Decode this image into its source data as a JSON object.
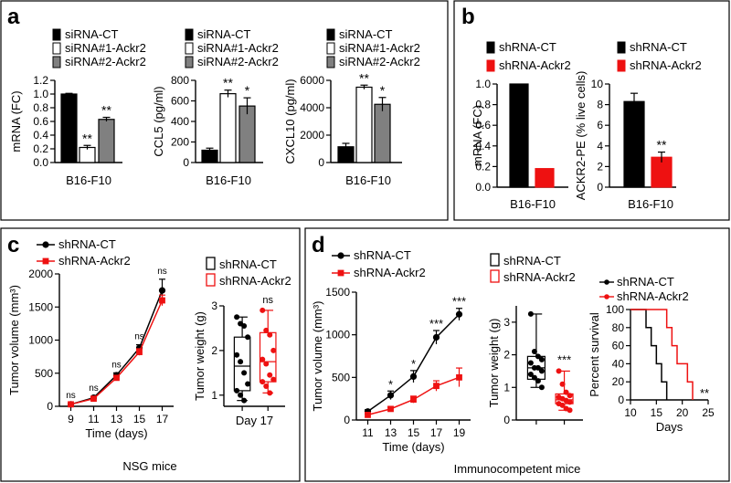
{
  "colors": {
    "black": "#000000",
    "white": "#ffffff",
    "gray": "#808080",
    "red": "#ee1111"
  },
  "panels": {
    "a": {
      "letter": "a"
    },
    "b": {
      "letter": "b"
    },
    "c": {
      "letter": "c",
      "caption": "NSG mice"
    },
    "d": {
      "letter": "d",
      "caption": "Immunocompetent mice"
    }
  },
  "chart_data": [
    {
      "id": "a1",
      "type": "bar",
      "panel": "a",
      "legend": [
        "siRNA-CT",
        "siRNA#1-Ackr2",
        "siRNA#2-Ackr2"
      ],
      "categories": [
        "B16-F10"
      ],
      "ylabel": "mRNA (FC)",
      "ylim": [
        0,
        1.2
      ],
      "yticks": [
        "0.0",
        "0.2",
        "0.4",
        "0.6",
        "0.8",
        "1.0",
        "1.2"
      ],
      "series": [
        {
          "name": "siRNA-CT",
          "value": 1.0,
          "error": 0.01,
          "color": "#000000",
          "sig": ""
        },
        {
          "name": "siRNA#1-Ackr2",
          "value": 0.22,
          "error": 0.03,
          "color": "#ffffff",
          "sig": "**"
        },
        {
          "name": "siRNA#2-Ackr2",
          "value": 0.63,
          "error": 0.03,
          "color": "#808080",
          "sig": "**"
        }
      ]
    },
    {
      "id": "a2",
      "type": "bar",
      "panel": "a",
      "legend": [
        "siRNA-CT",
        "siRNA#1-Ackr2",
        "siRNA#2-Ackr2"
      ],
      "categories": [
        "B16-F10"
      ],
      "ylabel": "CCL5 (pg/ml)",
      "ylim": [
        0,
        800
      ],
      "yticks": [
        "0",
        "200",
        "400",
        "600",
        "800"
      ],
      "series": [
        {
          "name": "siRNA-CT",
          "value": 120,
          "error": 20,
          "color": "#000000",
          "sig": ""
        },
        {
          "name": "siRNA#1-Ackr2",
          "value": 670,
          "error": 35,
          "color": "#ffffff",
          "sig": "**"
        },
        {
          "name": "siRNA#2-Ackr2",
          "value": 550,
          "error": 80,
          "color": "#808080",
          "sig": "*"
        }
      ]
    },
    {
      "id": "a3",
      "type": "bar",
      "panel": "a",
      "legend": [
        "siRNA-CT",
        "siRNA#1-Ackr2",
        "siRNA#2-Ackr2"
      ],
      "categories": [
        "B16-F10"
      ],
      "ylabel": "CXCL10 (pg/ml)",
      "ylim": [
        0,
        6000
      ],
      "yticks": [
        "0",
        "2000",
        "4000",
        "6000"
      ],
      "series": [
        {
          "name": "siRNA-CT",
          "value": 1150,
          "error": 250,
          "color": "#000000",
          "sig": ""
        },
        {
          "name": "siRNA#1-Ackr2",
          "value": 5500,
          "error": 150,
          "color": "#ffffff",
          "sig": "**"
        },
        {
          "name": "siRNA#2-Ackr2",
          "value": 4250,
          "error": 500,
          "color": "#808080",
          "sig": "*"
        }
      ]
    },
    {
      "id": "b1",
      "type": "bar",
      "panel": "b",
      "legend": [
        "shRNA-CT",
        "shRNA-Ackr2"
      ],
      "categories": [
        "B16-F10"
      ],
      "ylabel": "mRNA (FC)",
      "ylim": [
        0,
        1.0
      ],
      "yticks": [
        "0.0",
        "0.2",
        "0.4",
        "0.6",
        "0.8",
        "1.0"
      ],
      "series": [
        {
          "name": "shRNA-CT",
          "value": 1.0,
          "error": 0,
          "color": "#000000",
          "sig": ""
        },
        {
          "name": "shRNA-Ackr2",
          "value": 0.18,
          "error": 0,
          "color": "#ee1111",
          "sig": ""
        }
      ]
    },
    {
      "id": "b2",
      "type": "bar",
      "panel": "b",
      "legend": [
        "shRNA-CT",
        "shRNA-Ackr2"
      ],
      "categories": [
        "B16-F10"
      ],
      "ylabel": "ACKR2-PE (% live cells)",
      "ylim": [
        0,
        10
      ],
      "yticks": [
        "0",
        "2",
        "4",
        "6",
        "8",
        "10"
      ],
      "series": [
        {
          "name": "shRNA-CT",
          "value": 8.3,
          "error": 0.8,
          "color": "#000000",
          "sig": ""
        },
        {
          "name": "shRNA-Ackr2",
          "value": 2.9,
          "error": 0.5,
          "color": "#ee1111",
          "sig": "**"
        }
      ]
    },
    {
      "id": "c1",
      "type": "line",
      "panel": "c",
      "legend": [
        "shRNA-CT",
        "shRNA-Ackr2"
      ],
      "xlabel": "Time (days)",
      "ylabel": "Tumor volume (mm³)",
      "x": [
        9,
        11,
        13,
        15,
        17
      ],
      "xlim": [
        8,
        18
      ],
      "xticks": [
        "9",
        "11",
        "13",
        "15",
        "17"
      ],
      "ylim": [
        0,
        2000
      ],
      "yticks": [
        "0",
        "500",
        "1000",
        "1500",
        "2000"
      ],
      "series": [
        {
          "name": "shRNA-CT",
          "color": "#000000",
          "marker": "circle",
          "values": [
            30,
            130,
            470,
            880,
            1750
          ],
          "errors": [
            10,
            20,
            35,
            50,
            170
          ]
        },
        {
          "name": "shRNA-Ackr2",
          "color": "#ee1111",
          "marker": "square",
          "values": [
            30,
            115,
            430,
            820,
            1600
          ],
          "errors": [
            10,
            20,
            30,
            50,
            80
          ]
        }
      ],
      "annotations": [
        {
          "x": 9,
          "label": "ns"
        },
        {
          "x": 11,
          "label": "ns"
        },
        {
          "x": 13,
          "label": "ns"
        },
        {
          "x": 15,
          "label": "ns"
        },
        {
          "x": 17,
          "label": "ns"
        }
      ]
    },
    {
      "id": "c2",
      "type": "box",
      "panel": "c",
      "legend": [
        "shRNA-CT",
        "shRNA-Ackr2"
      ],
      "ylabel": "Tumor weight (g)",
      "xlabel": "Day 17",
      "ylim": [
        0.75,
        3.0
      ],
      "yticks": [
        "1",
        "2",
        "3"
      ],
      "significance": "ns",
      "series": [
        {
          "name": "shRNA-CT",
          "color": "#000000",
          "min": 0.88,
          "q1": 1.1,
          "median": 1.65,
          "q3": 2.3,
          "max": 2.75,
          "points": [
            2.75,
            2.6,
            2.55,
            2.3,
            1.9,
            1.75,
            1.5,
            1.25,
            1.1,
            1.0,
            0.88
          ]
        },
        {
          "name": "shRNA-Ackr2",
          "color": "#ee1111",
          "min": 1.05,
          "q1": 1.3,
          "median": 1.75,
          "q3": 2.4,
          "max": 2.9,
          "points": [
            2.9,
            2.45,
            2.35,
            2.0,
            1.8,
            1.7,
            1.45,
            1.35,
            1.3,
            1.2,
            1.05
          ]
        }
      ]
    },
    {
      "id": "d1",
      "type": "line",
      "panel": "d",
      "legend": [
        "shRNA-CT",
        "shRNA-Ackr2"
      ],
      "xlabel": "Time (days)",
      "ylabel": "Tumor volume (mm³)",
      "x": [
        11,
        13,
        15,
        17,
        19
      ],
      "xlim": [
        10,
        20
      ],
      "xticks": [
        "11",
        "13",
        "15",
        "17",
        "19"
      ],
      "ylim": [
        0,
        1500
      ],
      "yticks": [
        "0",
        "500",
        "1000",
        "1500"
      ],
      "series": [
        {
          "name": "shRNA-CT",
          "color": "#000000",
          "marker": "circle",
          "values": [
            100,
            290,
            510,
            970,
            1240
          ],
          "errors": [
            20,
            50,
            70,
            80,
            70
          ]
        },
        {
          "name": "shRNA-Ackr2",
          "color": "#ee1111",
          "marker": "square",
          "values": [
            60,
            130,
            240,
            400,
            500
          ],
          "errors": [
            10,
            20,
            40,
            60,
            110
          ]
        }
      ],
      "annotations": [
        {
          "x": 13,
          "label": "*"
        },
        {
          "x": 15,
          "label": "*"
        },
        {
          "x": 17,
          "label": "***"
        },
        {
          "x": 19,
          "label": "***"
        }
      ]
    },
    {
      "id": "d2",
      "type": "box",
      "panel": "d",
      "legend": [
        "shRNA-CT",
        "shRNA-Ackr2"
      ],
      "ylabel": "Tumor weight (g)",
      "xlabel": "",
      "ylim": [
        0,
        3.5
      ],
      "yticks": [
        "0",
        "1",
        "2",
        "3"
      ],
      "significance": "***",
      "series": [
        {
          "name": "shRNA-CT",
          "color": "#000000",
          "min": 1.0,
          "q1": 1.25,
          "median": 1.6,
          "q3": 1.95,
          "max": 3.25,
          "points": [
            3.25,
            2.1,
            1.95,
            1.85,
            1.75,
            1.6,
            1.6,
            1.5,
            1.4,
            1.3,
            1.2,
            1.0
          ]
        },
        {
          "name": "shRNA-Ackr2",
          "color": "#ee1111",
          "min": 0.3,
          "q1": 0.5,
          "median": 0.62,
          "q3": 0.8,
          "max": 1.5,
          "points": [
            1.5,
            1.1,
            0.85,
            0.75,
            0.7,
            0.65,
            0.6,
            0.55,
            0.5,
            0.45,
            0.35,
            0.3
          ]
        }
      ]
    },
    {
      "id": "d3",
      "type": "step",
      "panel": "d",
      "legend": [
        "shRNA-CT",
        "shRNA-Ackr2"
      ],
      "xlabel": "Days",
      "ylabel": "Percent survival",
      "xlim": [
        10,
        25
      ],
      "xticks": [
        "10",
        "15",
        "20",
        "25"
      ],
      "ylim": [
        0,
        100
      ],
      "yticks": [
        "0",
        "20",
        "40",
        "60",
        "80",
        "100"
      ],
      "significance": "**",
      "series": [
        {
          "name": "shRNA-CT",
          "color": "#000000",
          "x": [
            10,
            13,
            14,
            15,
            16,
            17
          ],
          "y": [
            100,
            80,
            60,
            40,
            20,
            0
          ]
        },
        {
          "name": "shRNA-Ackr2",
          "color": "#ee1111",
          "x": [
            10,
            17,
            18,
            19,
            21,
            22
          ],
          "y": [
            100,
            80,
            60,
            40,
            20,
            0
          ]
        }
      ]
    }
  ]
}
